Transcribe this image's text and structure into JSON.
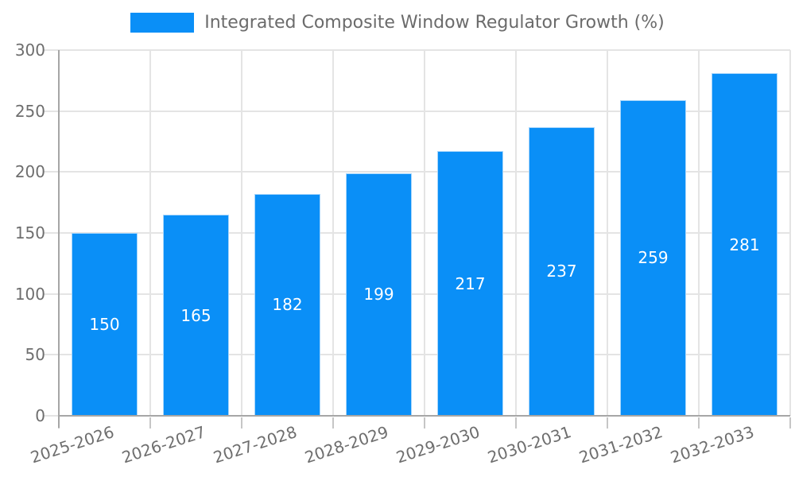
{
  "chart_data": {
    "type": "bar",
    "title": "",
    "legend": {
      "label": "Integrated Composite Window Regulator Growth (%)",
      "position": "top"
    },
    "categories": [
      "2025-2026",
      "2026-2027",
      "2027-2028",
      "2028-2029",
      "2029-2030",
      "2030-2031",
      "2031-2032",
      "2032-2033"
    ],
    "values": [
      150,
      165,
      182,
      199,
      217,
      237,
      259,
      281
    ],
    "xlabel": "",
    "ylabel": "",
    "ylim": [
      0,
      300
    ],
    "yticks": [
      0,
      50,
      100,
      150,
      200,
      250,
      300
    ],
    "grid": true,
    "colors": {
      "bar": "#0a8ff7",
      "bar_edge": "#a8d6fb",
      "value_label": "#ffffff",
      "axis_text": "#6e6e6e",
      "legend_text": "#6b6b6b",
      "gridline": "#e4e4e4",
      "axis_line": "#a6a6a6",
      "tick_mark": "#c6c6c6"
    }
  }
}
